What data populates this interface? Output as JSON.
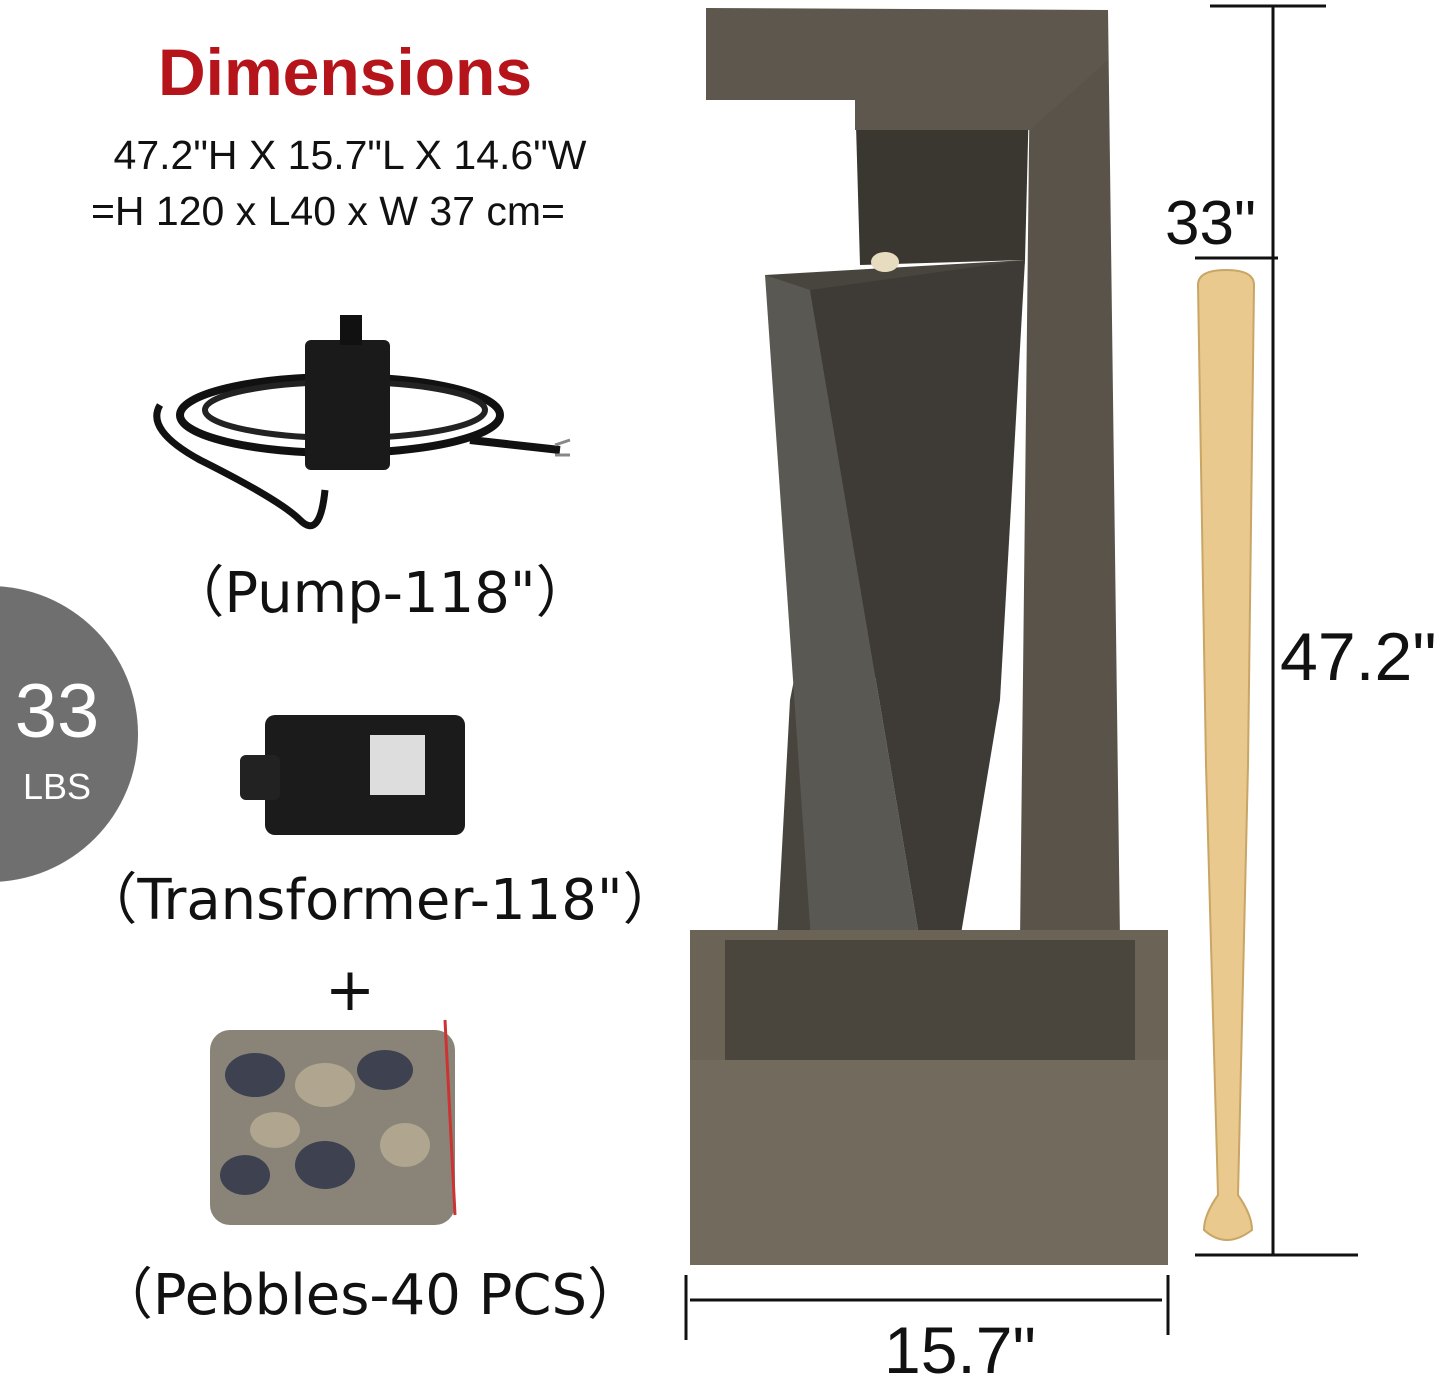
{
  "heading": "Dimensions",
  "dimensions_in": "47.2\"H X 15.7\"L X 14.6\"W",
  "dimensions_cm": "=H 120 x L40 x W 37 cm=",
  "weight": {
    "value": "33",
    "unit": "LBS"
  },
  "accessories": {
    "pump": "（Pump-118\"）",
    "transformer": "（Transformer-118\"）",
    "plus": "+",
    "pebbles": "（Pebbles-40 PCS）"
  },
  "measurements": {
    "bat_height": "33\"",
    "fountain_height": "47.2\"",
    "fountain_width": "15.7\""
  },
  "colors": {
    "heading": "#b5141b",
    "badge": "#6f6f6f",
    "text": "#111111"
  }
}
